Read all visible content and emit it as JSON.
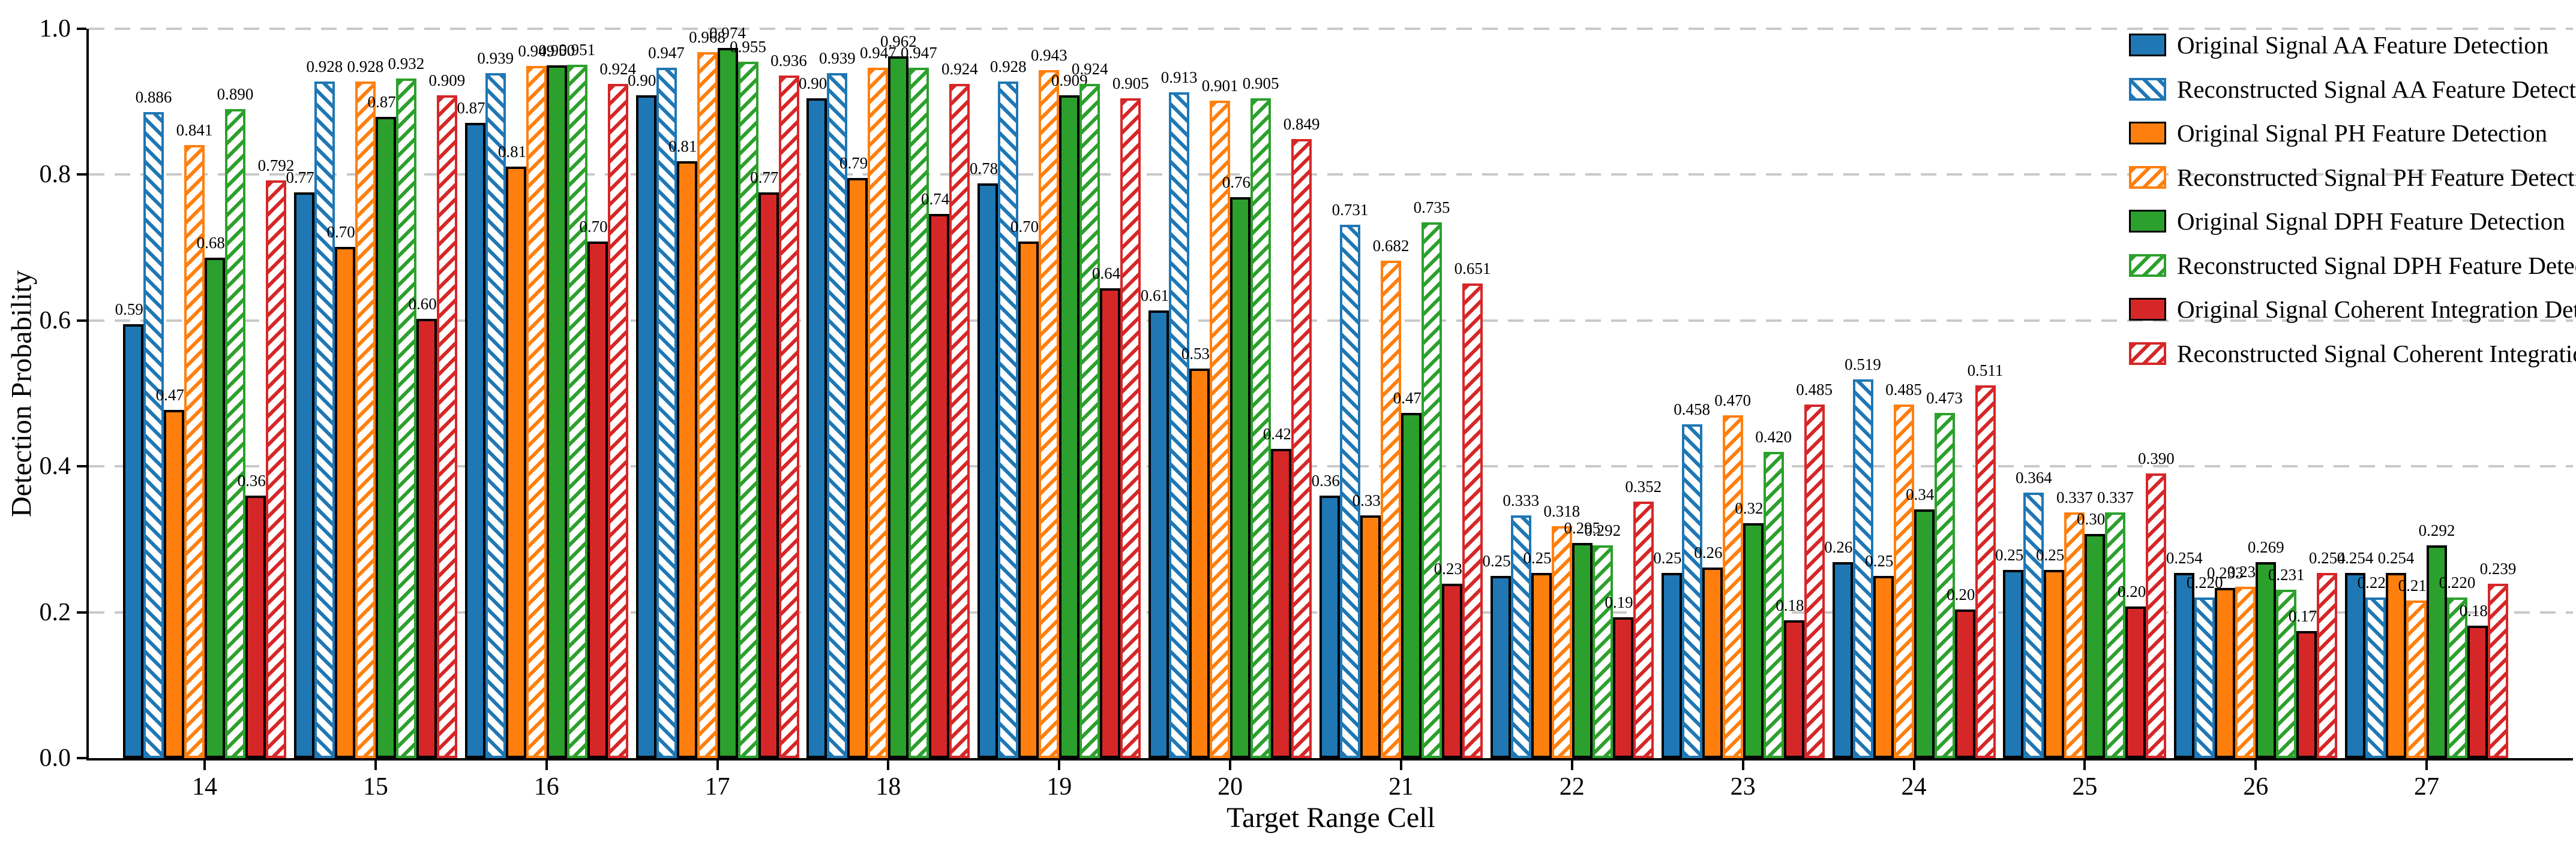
{
  "chart_data": {
    "type": "bar",
    "title": "",
    "xlabel": "Target Range Cell",
    "ylabel": "Detection Probability",
    "ylim": [
      0.0,
      1.0
    ],
    "ytick_labels": [
      "0.0",
      "0.2",
      "0.4",
      "0.6",
      "0.8",
      "1.0"
    ],
    "grid": "horizontal dashed gridlines at 0.2 intervals, light gray",
    "legend_position": "upper right, no frame",
    "value_label_decimals": 3,
    "categories": [
      "14",
      "15",
      "16",
      "17",
      "18",
      "19",
      "20",
      "21",
      "22",
      "23",
      "24",
      "25",
      "26",
      "27"
    ],
    "colors": {
      "blue": "#1f77b4",
      "orange": "#ff7f0e",
      "green": "#2ca02c",
      "red": "#d62728"
    },
    "series": [
      {
        "name": "Original Signal AA Feature Detection",
        "color": "#1f77b4",
        "pattern": "solid",
        "values": [
          0.595,
          0.776,
          0.871,
          0.909,
          0.905,
          0.788,
          0.614,
          0.36,
          0.25,
          0.254,
          0.269,
          0.258,
          0.254,
          0.254
        ]
      },
      {
        "name": "Reconstructed Signal AA Feature Detection",
        "color": "#1f77b4",
        "pattern": "hatch-backslash",
        "values": [
          0.886,
          0.928,
          0.939,
          0.947,
          0.939,
          0.928,
          0.913,
          0.731,
          0.333,
          0.458,
          0.519,
          0.364,
          0.22,
          0.22
        ]
      },
      {
        "name": "Original Signal PH Feature Detection",
        "color": "#ff7f0e",
        "pattern": "solid",
        "values": [
          0.477,
          0.701,
          0.811,
          0.818,
          0.795,
          0.708,
          0.534,
          0.333,
          0.254,
          0.261,
          0.25,
          0.258,
          0.233,
          0.254
        ]
      },
      {
        "name": "Reconstructed Signal PH Feature Detection",
        "color": "#ff7f0e",
        "pattern": "hatch-slash",
        "values": [
          0.841,
          0.928,
          0.949,
          0.968,
          0.947,
          0.943,
          0.901,
          0.682,
          0.318,
          0.47,
          0.485,
          0.337,
          0.235,
          0.216
        ]
      },
      {
        "name": "Original Signal DPH Feature Detection",
        "color": "#2ca02c",
        "pattern": "solid",
        "values": [
          0.686,
          0.879,
          0.95,
          0.974,
          0.962,
          0.909,
          0.769,
          0.473,
          0.295,
          0.322,
          0.341,
          0.307,
          0.269,
          0.292
        ]
      },
      {
        "name": "Reconstructed Signal DPH Feature Detection",
        "color": "#2ca02c",
        "pattern": "hatch-slash",
        "values": [
          0.89,
          0.932,
          0.951,
          0.955,
          0.947,
          0.924,
          0.905,
          0.735,
          0.292,
          0.42,
          0.473,
          0.337,
          0.231,
          0.22
        ]
      },
      {
        "name": "Original Signal Coherent Integration Detection",
        "color": "#d62728",
        "pattern": "solid",
        "values": [
          0.36,
          0.602,
          0.708,
          0.776,
          0.746,
          0.644,
          0.424,
          0.239,
          0.193,
          0.189,
          0.204,
          0.208,
          0.174,
          0.182
        ]
      },
      {
        "name": "Reconstructed Signal Coherent Integration Detection",
        "color": "#d62728",
        "pattern": "hatch-slash",
        "values": [
          0.792,
          0.909,
          0.924,
          0.936,
          0.924,
          0.905,
          0.849,
          0.651,
          0.352,
          0.485,
          0.511,
          0.39,
          0.254,
          0.239
        ]
      }
    ]
  }
}
